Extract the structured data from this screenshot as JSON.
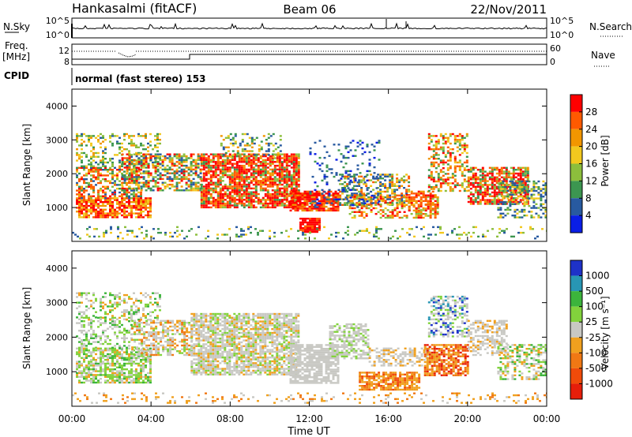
{
  "header": {
    "title": "Hankasalmi (fitACF)",
    "beam": "Beam 06",
    "date": "22/Nov/2011"
  },
  "labels": {
    "nsky": "N.Sky",
    "freq": "Freq.",
    "mhz": "[MHz]",
    "cpid": "CPID",
    "nsearch": "N.Search",
    "nave": "Nave",
    "mode": "normal (fast stereo) 153",
    "nsky_ticks": [
      "10^5",
      "10^0"
    ],
    "nsearch_ticks": [
      "10^5",
      "10^0"
    ],
    "freq_ticks": [
      "12",
      "8"
    ],
    "nave_ticks": [
      "60",
      "0"
    ]
  },
  "chart_data": [
    {
      "type": "heatmap",
      "name": "power-panel",
      "xlabel": "",
      "ylabel": "Slant Range [km]",
      "ylim": [
        0,
        4500
      ],
      "yticks": [
        "4000",
        "3000",
        "2000",
        "1000"
      ],
      "xticks": [
        "00:00",
        "04:00",
        "08:00",
        "12:00",
        "16:00",
        "20:00",
        "00:00"
      ],
      "colorbar": {
        "label": "Power [dB]",
        "ticks": [
          "28",
          "24",
          "20",
          "16",
          "12",
          "8",
          "4"
        ],
        "colors": [
          "#ff0000",
          "#ff5a00",
          "#f29600",
          "#f2c81e",
          "#8cbe3c",
          "#3c9650",
          "#285aa0",
          "#0a1ee6"
        ]
      }
    },
    {
      "type": "heatmap",
      "name": "velocity-panel",
      "xlabel": "Time UT",
      "ylabel": "Slant Range [km]",
      "ylim": [
        0,
        4500
      ],
      "yticks": [
        "4000",
        "3000",
        "2000",
        "1000"
      ],
      "xticks": [
        "00:00",
        "04:00",
        "08:00",
        "12:00",
        "16:00",
        "20:00",
        "00:00"
      ],
      "colorbar": {
        "label": "Velocity [m s⁻¹]",
        "ticks": [
          "1000",
          "500",
          "100",
          "25",
          "-25",
          "-100",
          "-500",
          "-1000"
        ],
        "colors": [
          "#1e32c8",
          "#2896b4",
          "#3cb43c",
          "#82d23c",
          "#c8c8c3",
          "#f0a01e",
          "#f07814",
          "#f04b0a",
          "#e61e0a"
        ]
      }
    }
  ]
}
